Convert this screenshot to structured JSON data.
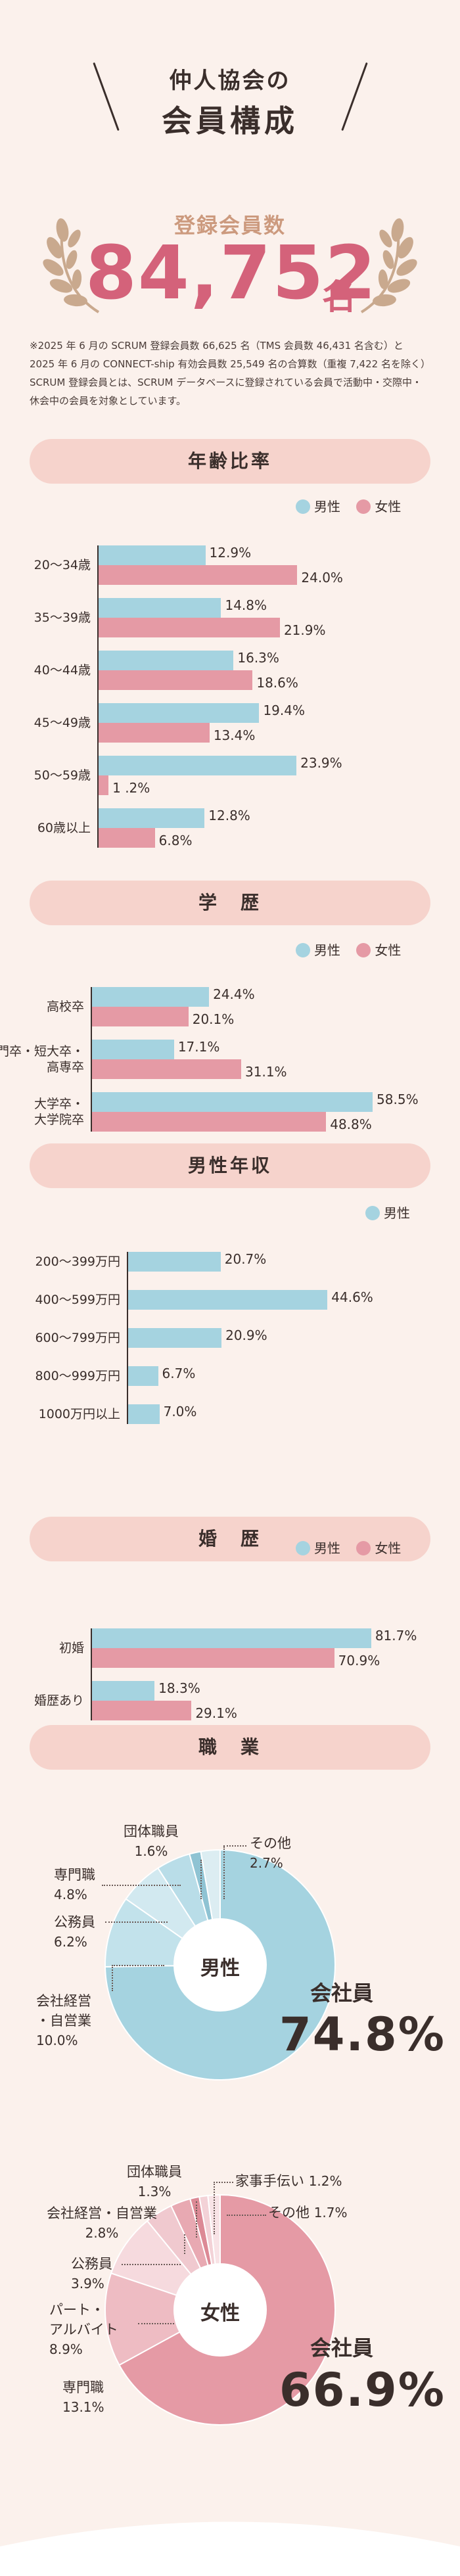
{
  "header": {
    "line1": "仲人協会の",
    "line2": "会員構成"
  },
  "members": {
    "label": "登録会員数",
    "number": "84,752",
    "unit": "名"
  },
  "note": "※2025 年 6 月の SCRUM 登録会員数 66,625 名（TMS 会員数 46,431 名含む）と 2025 年 6 月の CONNECT-ship 有効会員数 25,549 名の合算数（重複 7,422 名を除く）SCRUM 登録会員とは、SCRUM データベースに登録されている会員で活動中・交際中・休会中の会員を対象としています。",
  "legend": {
    "male": "男性",
    "female": "女性"
  },
  "colors": {
    "male": "#a5d3e0",
    "female": "#e59aa5",
    "accent": "#d4627a"
  },
  "chart_data": [
    {
      "type": "bar",
      "title": "年齢比率",
      "categories": [
        "20〜34歳",
        "35〜39歳",
        "40〜44歳",
        "45〜49歳",
        "50〜59歳",
        "60歳以上"
      ],
      "series": [
        {
          "name": "男性",
          "values": [
            12.9,
            14.8,
            16.3,
            19.4,
            23.9,
            12.8
          ],
          "labels": [
            "12.9%",
            "14.8%",
            "16.3%",
            "19.4%",
            "23.9%",
            "12.8%"
          ]
        },
        {
          "name": "女性",
          "values": [
            24.0,
            21.9,
            18.6,
            13.4,
            1.2,
            6.8
          ],
          "labels": [
            "24.0%",
            "21.9%",
            "18.6%",
            "13.4%",
            "1 .2%",
            "6.8%"
          ]
        }
      ]
    },
    {
      "type": "bar",
      "title": "学　歴",
      "categories": [
        "高校卒",
        "専門卒・短大卒・高専卒",
        "大学卒・大学院卒"
      ],
      "category_lines": [
        [
          "高校卒"
        ],
        [
          "専門卒・短大卒・",
          "高専卒"
        ],
        [
          "大学卒・",
          "大学院卒"
        ]
      ],
      "series": [
        {
          "name": "男性",
          "values": [
            24.4,
            17.1,
            58.5
          ],
          "labels": [
            "24.4%",
            "17.1%",
            "58.5%"
          ]
        },
        {
          "name": "女性",
          "values": [
            20.1,
            31.1,
            48.8
          ],
          "labels": [
            "20.1%",
            "31.1%",
            "48.8%"
          ]
        }
      ]
    },
    {
      "type": "bar",
      "title": "男性年収",
      "categories": [
        "200〜399万円",
        "400〜599万円",
        "600〜799万円",
        "800〜999万円",
        "1000万円以上"
      ],
      "series": [
        {
          "name": "男性",
          "values": [
            20.7,
            44.6,
            20.9,
            6.7,
            7.0
          ],
          "labels": [
            "20.7%",
            "44.6%",
            "20.9%",
            "6.7%",
            "7.0%"
          ]
        }
      ]
    },
    {
      "type": "bar",
      "title": "婚　歴",
      "categories": [
        "初婚",
        "婚歴あり"
      ],
      "series": [
        {
          "name": "男性",
          "values": [
            81.7,
            18.3
          ],
          "labels": [
            "81.7%",
            "18.3%"
          ]
        },
        {
          "name": "女性",
          "values": [
            70.9,
            29.1
          ],
          "labels": [
            "70.9%",
            "29.1%"
          ]
        }
      ]
    },
    {
      "type": "pie",
      "title": "職　業",
      "center": "男性",
      "slices": [
        {
          "label": "会社員",
          "value": 74.8,
          "pct": "74.8%",
          "color": "#a5d3e0"
        },
        {
          "label": "会社経営・自営業",
          "value": 10.0,
          "pct": "10.0%",
          "color": "#c2e2eb"
        },
        {
          "label": "公務員",
          "value": 6.2,
          "pct": "6.2%",
          "color": "#d2e9f0"
        },
        {
          "label": "専門職",
          "value": 4.8,
          "pct": "4.8%",
          "color": "#b9dde8"
        },
        {
          "label": "団体職員",
          "value": 1.6,
          "pct": "1.6%",
          "color": "#8fc3d3"
        },
        {
          "label": "その他",
          "value": 2.7,
          "pct": "2.7%",
          "color": "#dcedf2"
        }
      ]
    },
    {
      "type": "pie",
      "title": "職　業",
      "center": "女性",
      "slices": [
        {
          "label": "会社員",
          "value": 66.9,
          "pct": "66.9%",
          "color": "#e59aa5"
        },
        {
          "label": "専門職",
          "value": 13.1,
          "pct": "13.1%",
          "color": "#eebcc3"
        },
        {
          "label": "パート・アルバイト",
          "value": 8.9,
          "pct": "8.9%",
          "color": "#f6dade"
        },
        {
          "label": "公務員",
          "value": 3.9,
          "pct": "3.9%",
          "color": "#f0c9cf"
        },
        {
          "label": "会社経営・自営業",
          "value": 2.8,
          "pct": "2.8%",
          "color": "#e8a9b2"
        },
        {
          "label": "団体職員",
          "value": 1.3,
          "pct": "1.3%",
          "color": "#dc8995"
        },
        {
          "label": "家事手伝い",
          "value": 1.2,
          "pct": "1.2%",
          "color": "#f3d2d7"
        },
        {
          "label": "その他",
          "value": 1.7,
          "pct": "1.7%",
          "color": "#f8e3e6"
        }
      ]
    }
  ],
  "occupation_labels": {
    "male": {
      "dantai": "団体職員",
      "dantai_pct": "1.6%",
      "sonota": "その他",
      "sonota_pct": "2.7%",
      "senmon": "専門職",
      "senmon_pct": "4.8%",
      "koumu": "公務員",
      "koumu_pct": "6.2%",
      "keiei1": "会社経営",
      "keiei2": "・自営業",
      "keiei_pct": "10.0%",
      "kaisha": "会社員",
      "kaisha_pct": "74.8%"
    },
    "female": {
      "dantai": "団体職員",
      "dantai_pct": "1.3%",
      "kaji": "家事手伝い",
      "kaji_pct": "1.2%",
      "keiei": "会社経営・自営業",
      "keiei_pct": "2.8%",
      "sonota": "その他",
      "sonota_pct": "1.7%",
      "koumu": "公務員",
      "koumu_pct": "3.9%",
      "part1": "パート・",
      "part2": "アルバイト",
      "part_pct": "8.9%",
      "senmon": "専門職",
      "senmon_pct": "13.1%",
      "kaisha": "会社員",
      "kaisha_pct": "66.9%"
    }
  }
}
